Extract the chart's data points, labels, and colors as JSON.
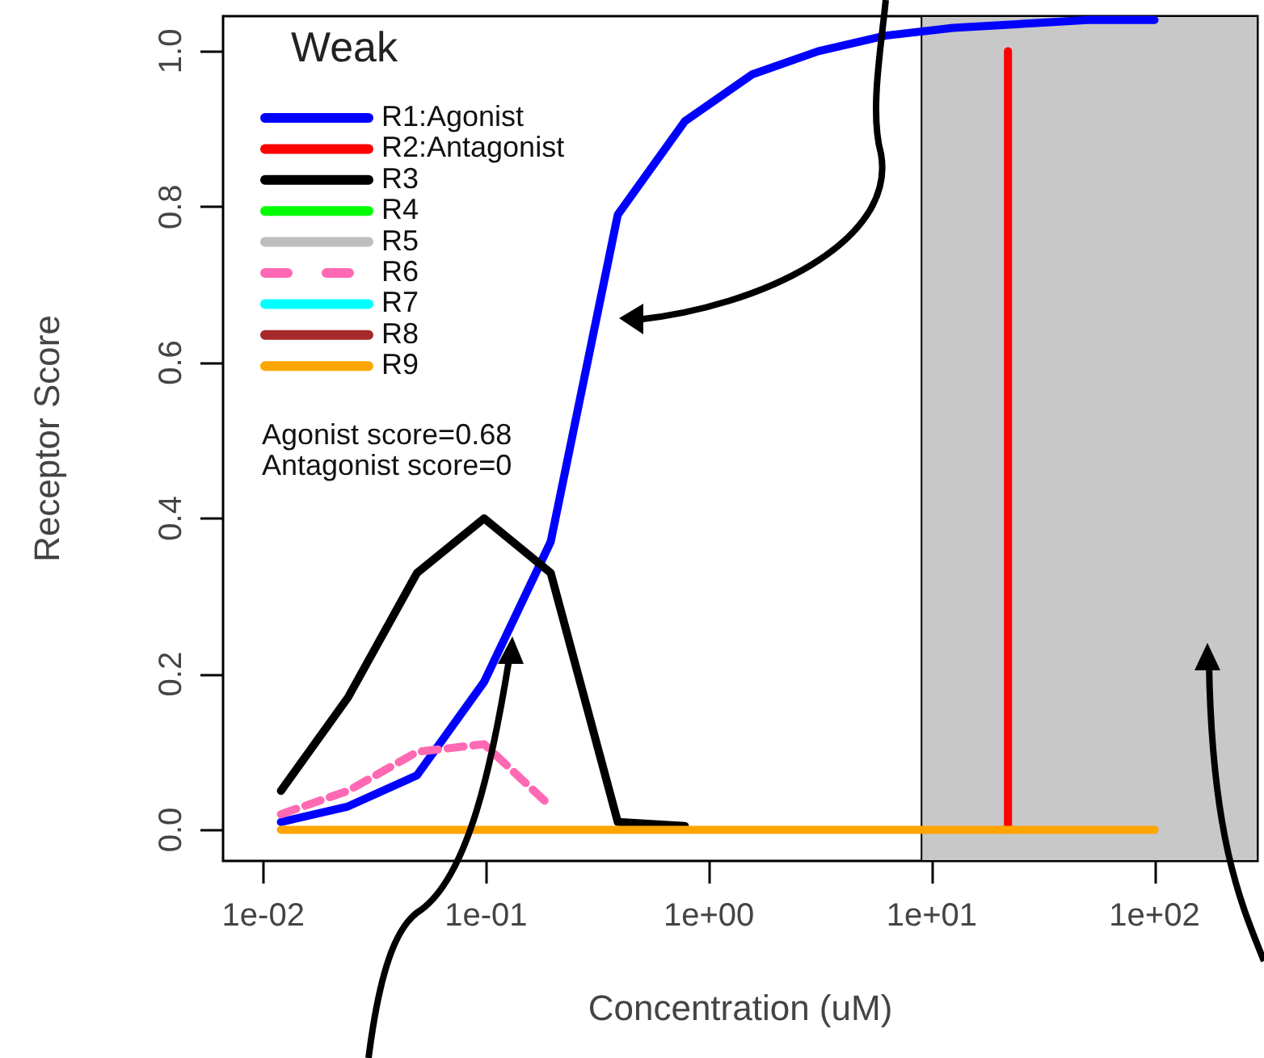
{
  "chart_data": {
    "type": "line",
    "xlabel": "Concentration (uM)",
    "ylabel": "Receptor Score",
    "legend_title": "Weak",
    "log": "x",
    "x": [
      0.012,
      0.024,
      0.049,
      0.098,
      0.195,
      0.39,
      0.78,
      1.56,
      3.1,
      6.2,
      12.5,
      25,
      50,
      100
    ],
    "series": [
      {
        "name": "R1:Agonist",
        "color": "#0000ff",
        "values": [
          0.01,
          0.03,
          0.07,
          0.19,
          0.37,
          0.79,
          0.91,
          0.97,
          1.0,
          1.02,
          1.03,
          1.035,
          1.04,
          1.04
        ]
      },
      {
        "name": "R2:Antagonist",
        "color": "#ff0000",
        "x": [
          22,
          22
        ],
        "values": [
          0,
          1.0
        ]
      },
      {
        "name": "R3",
        "color": "#000000",
        "values": [
          0.05,
          0.17,
          0.33,
          0.4,
          0.33,
          0.01,
          0.005,
          null,
          null,
          null,
          null,
          null,
          null,
          null
        ]
      },
      {
        "name": "R4",
        "color": "#00ff00",
        "values": [
          null,
          null,
          null,
          null,
          null,
          null,
          null,
          null,
          null,
          null,
          null,
          null,
          null,
          null
        ]
      },
      {
        "name": "R5",
        "color": "#bebebe",
        "values": [
          null,
          null,
          null,
          null,
          null,
          null,
          null,
          null,
          null,
          null,
          null,
          null,
          null,
          null
        ]
      },
      {
        "name": "R6",
        "color": "#ff69b4",
        "line_style": "dashed",
        "values": [
          0.02,
          0.05,
          0.1,
          0.11,
          0.03,
          null,
          null,
          null,
          null,
          null,
          null,
          null,
          null,
          null
        ]
      },
      {
        "name": "R7",
        "color": "#00ffff",
        "values": [
          null,
          null,
          null,
          null,
          null,
          null,
          null,
          null,
          null,
          null,
          null,
          null,
          null,
          null
        ]
      },
      {
        "name": "R8",
        "color": "#a52a2a",
        "values": [
          null,
          null,
          null,
          null,
          null,
          null,
          null,
          null,
          null,
          null,
          null,
          null,
          null,
          null
        ]
      },
      {
        "name": "R9",
        "color": "#ffa500",
        "values": [
          0,
          0,
          0,
          0,
          0,
          0,
          0,
          0,
          0,
          0,
          0,
          0,
          0,
          0
        ]
      }
    ],
    "xlim": [
      0.0066,
      290
    ],
    "ylim": [
      -0.04,
      1.045
    ],
    "xticks": [
      {
        "value": 0.01,
        "label": "1e-02"
      },
      {
        "value": 0.1,
        "label": "1e-01"
      },
      {
        "value": 1,
        "label": "1e+00"
      },
      {
        "value": 10,
        "label": "1e+01"
      },
      {
        "value": 100,
        "label": "1e+02"
      }
    ],
    "yticks": [
      {
        "value": 0,
        "label": "0.0"
      },
      {
        "value": 0.2,
        "label": "0.2"
      },
      {
        "value": 0.4,
        "label": "0.4"
      },
      {
        "value": 0.6,
        "label": "0.6"
      },
      {
        "value": 0.8,
        "label": "0.8"
      },
      {
        "value": 1,
        "label": "1.0"
      }
    ],
    "bands": [
      {
        "axis": "x",
        "from": 9,
        "to": 290,
        "color": "#c8c8c8"
      }
    ],
    "annotations": [
      "Agonist score=0.68",
      "Antagonist score=0"
    ],
    "legend": "top left",
    "grid": false,
    "marker": "none",
    "line_style": "solid"
  }
}
